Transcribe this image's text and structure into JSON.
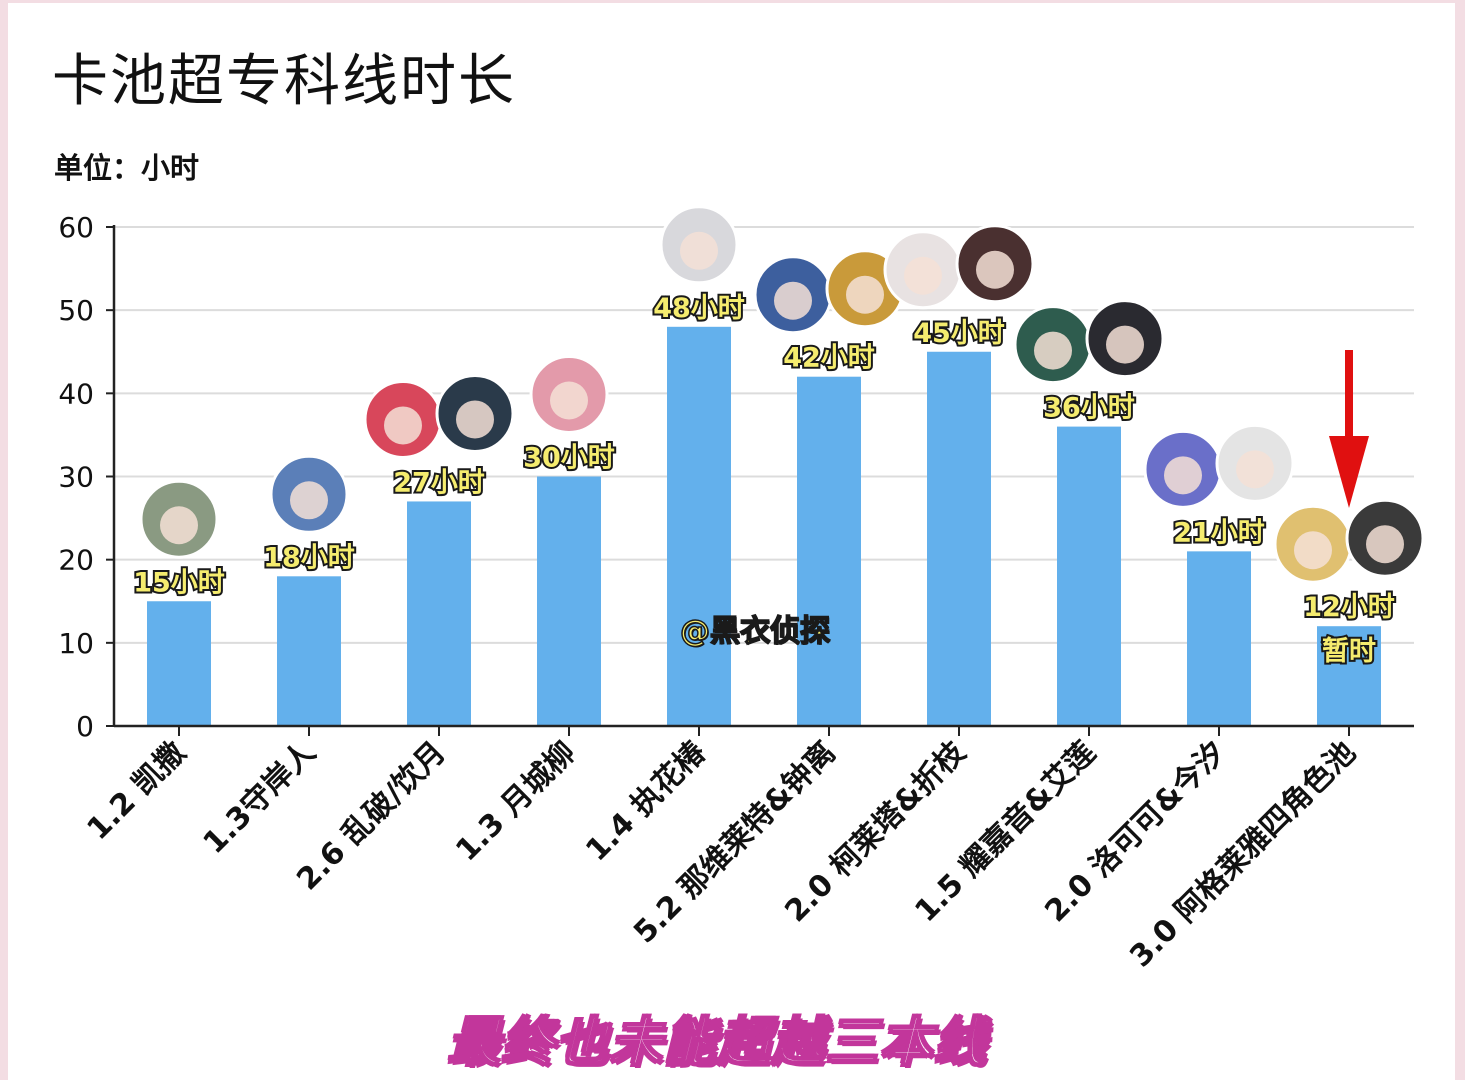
{
  "page": {
    "title": "卡池超专科线时长",
    "unit_label": "单位：小时",
    "watermark": "@黑衣侦探",
    "subtitle": "最终也未能超越三本线"
  },
  "colors": {
    "bar": "#63b0ec",
    "arrow": "#e01010",
    "label_fill": "#f5ec6e",
    "subtitle_outline": "#c2369b"
  },
  "chart_data": {
    "type": "bar",
    "categories": [
      "1.2 凯撒",
      "1.3守岸人",
      "2.6 乱破/饮月",
      "1.3 月城柳",
      "1.4 执花椿",
      "5.2 那维莱特&钟离",
      "2.0 柯莱塔&折枝",
      "1.5 耀嘉音&艾莲",
      "2.0 洛可可&今汐",
      "3.0 阿格莱雅四角色池"
    ],
    "values": [
      15,
      18,
      27,
      30,
      48,
      42,
      45,
      36,
      21,
      12
    ],
    "value_labels": [
      "15小时",
      "18小时",
      "27小时",
      "30小时",
      "48小时",
      "42小时",
      "45小时",
      "36小时",
      "21小时",
      "12小时"
    ],
    "ylim": [
      0,
      60
    ],
    "yticks": [
      0,
      10,
      20,
      30,
      40,
      50,
      60
    ],
    "grid": true,
    "annotations": [
      {
        "category": "3.0 阿格莱雅四角色池",
        "text": "暂时"
      }
    ],
    "highlight_arrow": "3.0 阿格莱雅四角色池"
  }
}
